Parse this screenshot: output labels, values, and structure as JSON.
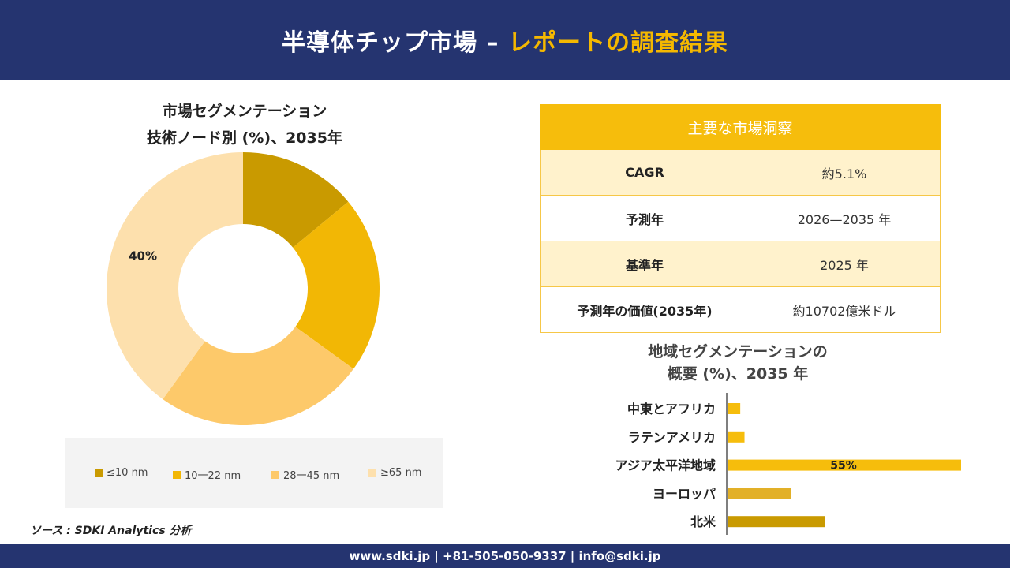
{
  "header": {
    "title_white": "半導体チップ市場 –",
    "title_yellow": "レポートの調査結果"
  },
  "donut": {
    "title_line1": "市場セグメンテーション",
    "title_line2": "技術ノード別 (%)、2035年"
  },
  "insights": {
    "title": "主要な市場洞察",
    "rows": [
      {
        "key": "CAGR",
        "value": "約5.1%"
      },
      {
        "key": "予測年",
        "value": "2026—2035 年"
      },
      {
        "key": "基準年",
        "value": "2025 年"
      },
      {
        "key": "予測年の価値(2035年)",
        "value": "約10702億米ドル"
      }
    ]
  },
  "bars_section": {
    "title_line1": "地域セグメンテーションの",
    "title_line2": "概要 (%)、2035 年"
  },
  "source": "ソース : SDKI Analytics 分析",
  "footer": "www.sdki.jp | +81-505-050-9337 | info@sdki.jp",
  "chart_data": [
    {
      "type": "pie",
      "title": "市場セグメンテーション 技術ノード別 (%)、2035年",
      "labels": [
        "≤10 nm",
        "10一22 nm",
        "28一45 nm",
        "≥65 nm"
      ],
      "values": [
        14,
        21,
        25,
        40
      ],
      "data_labels": [
        "",
        "",
        "",
        "40%"
      ],
      "colors": [
        "#c99a00",
        "#f2b705",
        "#fdc96a",
        "#fde0ad"
      ],
      "legend": "bottom"
    },
    {
      "type": "bar",
      "orientation": "horizontal",
      "title": "地域セグメンテーションの 概要 (%)、2035 年",
      "categories": [
        "中東とアフリカ",
        "ラテンアメリカ",
        "アジア太平洋地域",
        "ヨーロッパ",
        "北米"
      ],
      "values": [
        3,
        4,
        55,
        15,
        23
      ],
      "data_labels": [
        "",
        "",
        "55%",
        "",
        ""
      ],
      "colors": [
        "#f6bd0c",
        "#f6bd0c",
        "#f6bd0c",
        "#e2b028",
        "#c99a00"
      ],
      "xlim": [
        0,
        55
      ]
    }
  ]
}
